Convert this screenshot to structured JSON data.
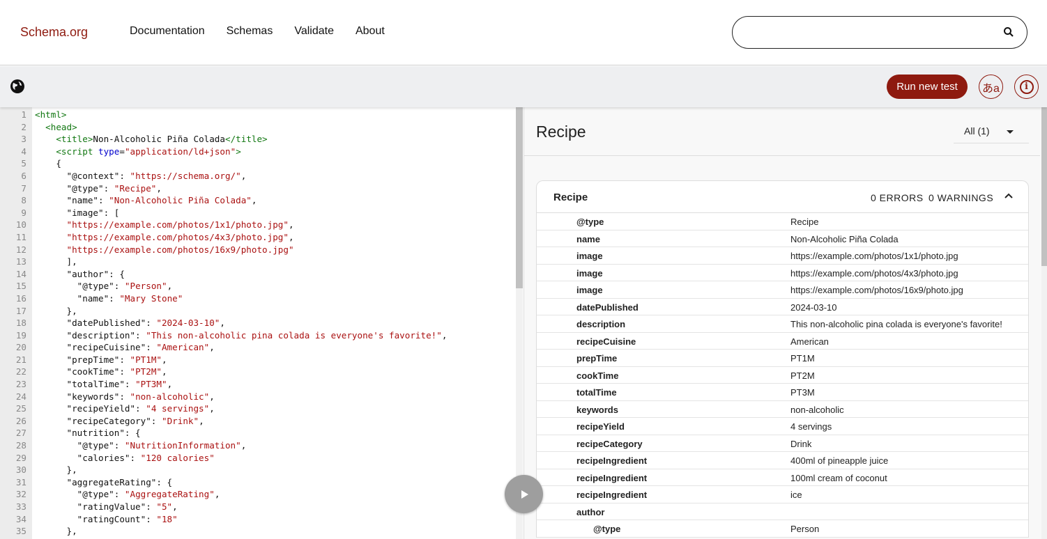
{
  "header": {
    "logo": "Schema.org",
    "nav": [
      "Documentation",
      "Schemas",
      "Validate",
      "About"
    ],
    "search_placeholder": ""
  },
  "toolbar": {
    "run_label": "Run new test",
    "lang_label": "あa",
    "info_label": "i"
  },
  "colors": {
    "brand": "#8e1a0f",
    "tag": "#117711",
    "attr": "#0000cc",
    "string": "#aa1111"
  },
  "editor": {
    "lines": [
      [
        [
          "t",
          "<html>"
        ]
      ],
      [
        [
          "p",
          "  "
        ],
        [
          "t",
          "<head>"
        ]
      ],
      [
        [
          "p",
          "    "
        ],
        [
          "t",
          "<title>"
        ],
        [
          "p",
          "Non-Alcoholic Piña Colada"
        ],
        [
          "t",
          "</title>"
        ]
      ],
      [
        [
          "p",
          "    "
        ],
        [
          "t",
          "<script "
        ],
        [
          "a",
          "type"
        ],
        [
          "p",
          "="
        ],
        [
          "s",
          "\"application/ld+json\""
        ],
        [
          "t",
          ">"
        ]
      ],
      [
        [
          "p",
          "    {"
        ]
      ],
      [
        [
          "p",
          "      \"@context\": "
        ],
        [
          "s",
          "\"https://schema.org/\""
        ],
        [
          "p",
          ","
        ]
      ],
      [
        [
          "p",
          "      \"@type\": "
        ],
        [
          "s",
          "\"Recipe\""
        ],
        [
          "p",
          ","
        ]
      ],
      [
        [
          "p",
          "      \"name\": "
        ],
        [
          "s",
          "\"Non-Alcoholic Piña Colada\""
        ],
        [
          "p",
          ","
        ]
      ],
      [
        [
          "p",
          "      \"image\": ["
        ]
      ],
      [
        [
          "p",
          "      "
        ],
        [
          "s",
          "\"https://example.com/photos/1x1/photo.jpg\""
        ],
        [
          "p",
          ","
        ]
      ],
      [
        [
          "p",
          "      "
        ],
        [
          "s",
          "\"https://example.com/photos/4x3/photo.jpg\""
        ],
        [
          "p",
          ","
        ]
      ],
      [
        [
          "p",
          "      "
        ],
        [
          "s",
          "\"https://example.com/photos/16x9/photo.jpg\""
        ]
      ],
      [
        [
          "p",
          "      ],"
        ]
      ],
      [
        [
          "p",
          "      \"author\": {"
        ]
      ],
      [
        [
          "p",
          "        \"@type\": "
        ],
        [
          "s",
          "\"Person\""
        ],
        [
          "p",
          ","
        ]
      ],
      [
        [
          "p",
          "        \"name\": "
        ],
        [
          "s",
          "\"Mary Stone\""
        ]
      ],
      [
        [
          "p",
          "      },"
        ]
      ],
      [
        [
          "p",
          "      \"datePublished\": "
        ],
        [
          "s",
          "\"2024-03-10\""
        ],
        [
          "p",
          ","
        ]
      ],
      [
        [
          "p",
          "      \"description\": "
        ],
        [
          "s",
          "\"This non-alcoholic pina colada is everyone's favorite!\""
        ],
        [
          "p",
          ","
        ]
      ],
      [
        [
          "p",
          "      \"recipeCuisine\": "
        ],
        [
          "s",
          "\"American\""
        ],
        [
          "p",
          ","
        ]
      ],
      [
        [
          "p",
          "      \"prepTime\": "
        ],
        [
          "s",
          "\"PT1M\""
        ],
        [
          "p",
          ","
        ]
      ],
      [
        [
          "p",
          "      \"cookTime\": "
        ],
        [
          "s",
          "\"PT2M\""
        ],
        [
          "p",
          ","
        ]
      ],
      [
        [
          "p",
          "      \"totalTime\": "
        ],
        [
          "s",
          "\"PT3M\""
        ],
        [
          "p",
          ","
        ]
      ],
      [
        [
          "p",
          "      \"keywords\": "
        ],
        [
          "s",
          "\"non-alcoholic\""
        ],
        [
          "p",
          ","
        ]
      ],
      [
        [
          "p",
          "      \"recipeYield\": "
        ],
        [
          "s",
          "\"4 servings\""
        ],
        [
          "p",
          ","
        ]
      ],
      [
        [
          "p",
          "      \"recipeCategory\": "
        ],
        [
          "s",
          "\"Drink\""
        ],
        [
          "p",
          ","
        ]
      ],
      [
        [
          "p",
          "      \"nutrition\": {"
        ]
      ],
      [
        [
          "p",
          "        \"@type\": "
        ],
        [
          "s",
          "\"NutritionInformation\""
        ],
        [
          "p",
          ","
        ]
      ],
      [
        [
          "p",
          "        \"calories\": "
        ],
        [
          "s",
          "\"120 calories\""
        ]
      ],
      [
        [
          "p",
          "      },"
        ]
      ],
      [
        [
          "p",
          "      \"aggregateRating\": {"
        ]
      ],
      [
        [
          "p",
          "        \"@type\": "
        ],
        [
          "s",
          "\"AggregateRating\""
        ],
        [
          "p",
          ","
        ]
      ],
      [
        [
          "p",
          "        \"ratingValue\": "
        ],
        [
          "s",
          "\"5\""
        ],
        [
          "p",
          ","
        ]
      ],
      [
        [
          "p",
          "        \"ratingCount\": "
        ],
        [
          "s",
          "\"18\""
        ]
      ],
      [
        [
          "p",
          "      },"
        ]
      ]
    ]
  },
  "results": {
    "title": "Recipe",
    "filter": "All (1)",
    "card": {
      "title": "Recipe",
      "errors": "0 ERRORS",
      "warnings": "0 WARNINGS",
      "rows": [
        {
          "key": "@type",
          "value": "Recipe"
        },
        {
          "key": "name",
          "value": "Non-Alcoholic Piña Colada"
        },
        {
          "key": "image",
          "value": "https://example.com/photos/1x1/photo.jpg"
        },
        {
          "key": "image",
          "value": "https://example.com/photos/4x3/photo.jpg"
        },
        {
          "key": "image",
          "value": "https://example.com/photos/16x9/photo.jpg"
        },
        {
          "key": "datePublished",
          "value": "2024-03-10"
        },
        {
          "key": "description",
          "value": "This non-alcoholic pina colada is everyone's favorite!"
        },
        {
          "key": "recipeCuisine",
          "value": "American"
        },
        {
          "key": "prepTime",
          "value": "PT1M"
        },
        {
          "key": "cookTime",
          "value": "PT2M"
        },
        {
          "key": "totalTime",
          "value": "PT3M"
        },
        {
          "key": "keywords",
          "value": "non-alcoholic"
        },
        {
          "key": "recipeYield",
          "value": "4 servings"
        },
        {
          "key": "recipeCategory",
          "value": "Drink"
        },
        {
          "key": "recipeIngredient",
          "value": "400ml of pineapple juice"
        },
        {
          "key": "recipeIngredient",
          "value": "100ml cream of coconut"
        },
        {
          "key": "recipeIngredient",
          "value": "ice"
        },
        {
          "key": "author",
          "value": ""
        },
        {
          "key": "@type",
          "value": "Person",
          "nested": true
        }
      ]
    }
  }
}
